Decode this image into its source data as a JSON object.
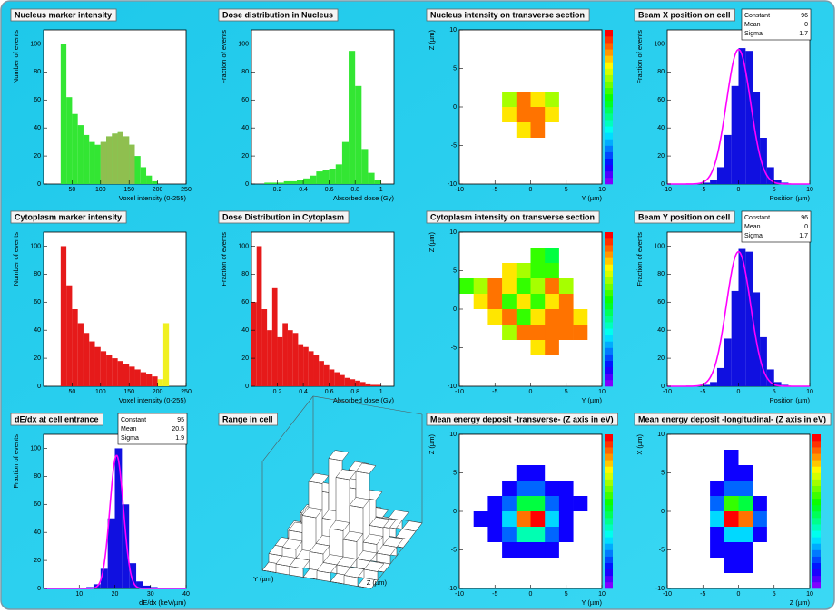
{
  "chart_data": [
    {
      "type": "histogram",
      "title": "Nucleus marker intensity",
      "xlabel": "Voxel intensity (0-255)",
      "ylabel": "Number of events",
      "bins": [
        30,
        40,
        50,
        60,
        70,
        80,
        90,
        100,
        110,
        120,
        130,
        140,
        150,
        160,
        170,
        180,
        190,
        200
      ],
      "series": [
        {
          "color": "#33e633",
          "values": [
            100,
            62,
            50,
            42,
            35,
            30,
            28,
            30,
            34,
            36,
            37,
            34,
            28,
            20,
            12,
            6,
            2
          ]
        },
        {
          "color": "#8fbf4f",
          "values": [
            null,
            null,
            null,
            null,
            null,
            null,
            null,
            30,
            34,
            36,
            37,
            34,
            28,
            null,
            null,
            null,
            null
          ]
        }
      ],
      "xlim": [
        0,
        250
      ],
      "ylim": [
        0,
        110
      ],
      "xticks": [
        50,
        100,
        150,
        200,
        250
      ],
      "yticks": [
        0,
        20,
        40,
        60,
        80,
        100
      ]
    },
    {
      "type": "histogram",
      "title": "Dose distribution in Nucleus",
      "xlabel": "Absorbed dose (Gy)",
      "ylabel": "Fraction of events",
      "bins": [
        0.1,
        0.15,
        0.2,
        0.25,
        0.3,
        0.35,
        0.4,
        0.45,
        0.5,
        0.55,
        0.6,
        0.65,
        0.7,
        0.75,
        0.8,
        0.85,
        0.9,
        0.95,
        1
      ],
      "series": [
        {
          "color": "#33e633",
          "values": [
            1,
            1,
            1,
            2,
            2,
            3,
            4,
            6,
            9,
            10,
            11,
            14,
            30,
            95,
            70,
            25,
            8,
            3
          ]
        }
      ],
      "xlim": [
        0,
        1.1
      ],
      "ylim": [
        0,
        110
      ],
      "xticks": [
        0.2,
        0.4,
        0.6,
        0.8,
        1
      ],
      "yticks": [
        0,
        20,
        40,
        60,
        80,
        100
      ]
    },
    {
      "type": "heatmap",
      "title": "Nucleus intensity on transverse section",
      "xlabel": "Y (µm)",
      "ylabel": "Z (µm)",
      "z": [
        [
          0,
          0,
          0,
          0,
          0,
          0,
          0,
          0,
          0,
          0
        ],
        [
          0,
          0,
          0,
          0,
          0,
          0,
          0,
          0,
          0,
          0
        ],
        [
          0,
          0,
          0,
          0,
          0,
          0,
          0,
          0,
          0,
          0
        ],
        [
          0,
          0,
          0,
          0,
          0,
          0,
          0,
          0,
          0,
          0
        ],
        [
          0,
          0,
          0,
          7,
          9,
          8,
          7,
          0,
          0,
          0
        ],
        [
          0,
          0,
          0,
          8,
          9,
          9,
          8,
          0,
          0,
          0
        ],
        [
          0,
          0,
          0,
          0,
          8,
          9,
          0,
          0,
          0,
          0
        ],
        [
          0,
          0,
          0,
          0,
          0,
          0,
          0,
          0,
          0,
          0
        ],
        [
          0,
          0,
          0,
          0,
          0,
          0,
          0,
          0,
          0,
          0
        ],
        [
          0,
          0,
          0,
          0,
          0,
          0,
          0,
          0,
          0,
          0
        ]
      ],
      "xlim": [
        -10,
        10
      ],
      "ylim": [
        -10,
        10
      ],
      "zlim": [
        0,
        10
      ],
      "xticks": [
        -10,
        -5,
        0,
        5,
        10
      ],
      "yticks": [
        -10,
        -5,
        0,
        5,
        10
      ]
    },
    {
      "type": "histogram",
      "title": "Beam X position on cell",
      "xlabel": "Position (µm)",
      "ylabel": "Fraction of events",
      "bins": [
        -10,
        -9,
        -8,
        -7,
        -6,
        -5,
        -4,
        -3,
        -2,
        -1,
        0,
        1,
        2,
        3,
        4,
        5,
        6,
        7,
        8,
        9,
        10
      ],
      "series": [
        {
          "color": "#1010e0",
          "values": [
            0,
            0,
            0,
            0,
            0,
            1,
            3,
            12,
            35,
            70,
            97,
            95,
            66,
            33,
            12,
            3,
            1,
            0,
            0,
            0
          ]
        }
      ],
      "stats": [
        {
          "label": "Constant",
          "value": 96
        },
        {
          "label": "Mean",
          "value": 0
        },
        {
          "label": "Sigma",
          "value": 1.7
        }
      ],
      "xlim": [
        -10,
        10
      ],
      "ylim": [
        0,
        110
      ],
      "xticks": [
        -10,
        -5,
        0,
        5,
        10
      ],
      "yticks": [
        0,
        20,
        40,
        60,
        80,
        100
      ]
    },
    {
      "type": "histogram",
      "title": "Cytoplasm marker intensity",
      "xlabel": "Voxel intensity (0-255)",
      "ylabel": "Number of events",
      "bins": [
        30,
        40,
        50,
        60,
        70,
        80,
        90,
        100,
        110,
        120,
        130,
        140,
        150,
        160,
        170,
        180,
        190,
        200,
        210,
        220
      ],
      "series": [
        {
          "color": "#e61a1a",
          "values": [
            100,
            72,
            55,
            45,
            38,
            32,
            28,
            25,
            22,
            20,
            18,
            16,
            14,
            12,
            10,
            9,
            7,
            null,
            null
          ]
        },
        {
          "color": "#f0f020",
          "values": [
            null,
            null,
            null,
            null,
            null,
            null,
            null,
            null,
            null,
            null,
            null,
            null,
            null,
            null,
            null,
            null,
            null,
            5,
            45
          ]
        }
      ],
      "xlim": [
        0,
        250
      ],
      "ylim": [
        0,
        110
      ],
      "xticks": [
        50,
        100,
        150,
        200,
        250
      ],
      "yticks": [
        0,
        20,
        40,
        60,
        80,
        100
      ]
    },
    {
      "type": "histogram",
      "title": "Dose Distribution in Cytoplasm",
      "xlabel": "Absorbed dose (Gy)",
      "ylabel": "Fraction of events",
      "bins": [
        0,
        0.04,
        0.08,
        0.12,
        0.16,
        0.2,
        0.24,
        0.28,
        0.32,
        0.36,
        0.4,
        0.44,
        0.48,
        0.52,
        0.56,
        0.6,
        0.64,
        0.68,
        0.72,
        0.76,
        0.8,
        0.84,
        0.88,
        0.92,
        0.96,
        1
      ],
      "series": [
        {
          "color": "#e61a1a",
          "values": [
            60,
            100,
            55,
            40,
            70,
            35,
            45,
            40,
            38,
            30,
            28,
            25,
            22,
            18,
            15,
            12,
            10,
            8,
            6,
            5,
            4,
            3,
            2,
            1,
            1
          ]
        }
      ],
      "xlim": [
        0,
        1.1
      ],
      "ylim": [
        0,
        110
      ],
      "xticks": [
        0.2,
        0.4,
        0.6,
        0.8,
        1
      ],
      "yticks": [
        0,
        20,
        40,
        60,
        80,
        100
      ]
    },
    {
      "type": "heatmap",
      "title": "Cytoplasm intensity on transverse section",
      "xlabel": "Y (µm)",
      "ylabel": "Z (µm)",
      "z": [
        [
          0,
          0,
          0,
          0,
          0,
          0,
          0,
          0,
          0,
          0
        ],
        [
          0,
          0,
          0,
          0,
          0,
          6,
          5,
          0,
          0,
          0
        ],
        [
          0,
          0,
          0,
          8,
          7,
          6,
          6,
          0,
          0,
          0
        ],
        [
          6,
          7,
          9,
          8,
          6,
          7,
          9,
          7,
          0,
          0
        ],
        [
          0,
          8,
          9,
          6,
          8,
          6,
          8,
          9,
          0,
          0
        ],
        [
          0,
          0,
          8,
          9,
          6,
          8,
          9,
          9,
          8,
          0
        ],
        [
          0,
          0,
          0,
          7,
          9,
          9,
          9,
          9,
          9,
          0
        ],
        [
          0,
          0,
          0,
          0,
          0,
          8,
          9,
          0,
          0,
          0
        ],
        [
          0,
          0,
          0,
          0,
          0,
          0,
          0,
          0,
          0,
          0
        ],
        [
          0,
          0,
          0,
          0,
          0,
          0,
          0,
          0,
          0,
          0
        ]
      ],
      "xlim": [
        -10,
        10
      ],
      "ylim": [
        -10,
        10
      ],
      "zlim": [
        0,
        10
      ],
      "xticks": [
        -10,
        -5,
        0,
        5,
        10
      ],
      "yticks": [
        -10,
        -5,
        0,
        5,
        10
      ]
    },
    {
      "type": "histogram",
      "title": "Beam Y position on cell",
      "xlabel": "Position (µm)",
      "ylabel": "Fraction of events",
      "bins": [
        -10,
        -9,
        -8,
        -7,
        -6,
        -5,
        -4,
        -3,
        -2,
        -1,
        0,
        1,
        2,
        3,
        4,
        5,
        6,
        7,
        8,
        9,
        10
      ],
      "series": [
        {
          "color": "#1010e0",
          "values": [
            0,
            0,
            0,
            0,
            0,
            1,
            3,
            13,
            34,
            68,
            98,
            96,
            67,
            35,
            12,
            3,
            1,
            0,
            0,
            0
          ]
        }
      ],
      "stats": [
        {
          "label": "Constant",
          "value": 96
        },
        {
          "label": "Mean",
          "value": 0
        },
        {
          "label": "Sigma",
          "value": 1.7
        }
      ],
      "xlim": [
        -10,
        10
      ],
      "ylim": [
        0,
        110
      ],
      "xticks": [
        -10,
        -5,
        0,
        5,
        10
      ],
      "yticks": [
        0,
        20,
        40,
        60,
        80,
        100
      ]
    },
    {
      "type": "histogram",
      "title": "dE/dx at cell entrance",
      "xlabel": "dE/dx (keV/µm)",
      "ylabel": "Fraction of events",
      "bins": [
        0,
        2,
        4,
        6,
        8,
        10,
        12,
        14,
        16,
        18,
        20,
        22,
        24,
        26,
        28,
        30,
        32,
        34,
        36,
        38,
        40
      ],
      "series": [
        {
          "color": "#1010e0",
          "values": [
            0,
            0,
            0,
            0,
            0,
            0,
            1,
            3,
            14,
            50,
            100,
            60,
            18,
            5,
            2,
            1,
            0,
            0,
            0,
            0
          ]
        }
      ],
      "stats": [
        {
          "label": "Constant",
          "value": 95
        },
        {
          "label": "Mean",
          "value": 20.5
        },
        {
          "label": "Sigma",
          "value": 1.9
        }
      ],
      "xlim": [
        0,
        40
      ],
      "ylim": [
        0,
        110
      ],
      "xticks": [
        10,
        20,
        30,
        40
      ],
      "yticks": [
        0,
        20,
        40,
        60,
        80,
        100
      ]
    },
    {
      "type": "lego",
      "title": "Range in cell",
      "xlabel": "Z (µm)",
      "ylabel": "Y (µm)",
      "z": [
        [
          0,
          1,
          1,
          0,
          1,
          0,
          1,
          0
        ],
        [
          1,
          2,
          1,
          2,
          1,
          1,
          0,
          1
        ],
        [
          1,
          3,
          5,
          2,
          4,
          3,
          1,
          0
        ],
        [
          0,
          2,
          8,
          4,
          9,
          6,
          2,
          1
        ],
        [
          1,
          3,
          6,
          10,
          7,
          9,
          3,
          1
        ],
        [
          0,
          2,
          4,
          6,
          8,
          5,
          2,
          0
        ],
        [
          1,
          1,
          2,
          3,
          2,
          2,
          1,
          0
        ],
        [
          0,
          1,
          0,
          1,
          1,
          0,
          1,
          0
        ]
      ],
      "zlim": [
        0,
        10
      ],
      "color": "#ffffff"
    },
    {
      "type": "heatmap",
      "title": "Mean energy deposit -transverse- (Z axis in eV)",
      "xlabel": "Y (µm)",
      "ylabel": "Z (µm)",
      "z": [
        [
          0,
          0,
          0,
          0,
          0,
          0,
          0,
          0,
          0,
          0
        ],
        [
          0,
          0,
          0,
          0,
          0,
          0,
          0,
          0,
          0,
          0
        ],
        [
          0,
          0,
          0,
          0,
          1,
          1,
          0,
          0,
          0,
          0
        ],
        [
          0,
          0,
          0,
          1,
          2,
          2,
          1,
          1,
          0,
          0
        ],
        [
          0,
          0,
          1,
          2,
          5,
          5,
          2,
          1,
          1,
          0
        ],
        [
          0,
          1,
          1,
          3,
          9,
          10,
          3,
          1,
          0,
          0
        ],
        [
          0,
          0,
          1,
          2,
          4,
          4,
          2,
          1,
          0,
          0
        ],
        [
          0,
          0,
          0,
          1,
          1,
          1,
          1,
          0,
          0,
          0
        ],
        [
          0,
          0,
          0,
          0,
          0,
          0,
          0,
          0,
          0,
          0
        ],
        [
          0,
          0,
          0,
          0,
          0,
          0,
          0,
          0,
          0,
          0
        ]
      ],
      "xlim": [
        -10,
        10
      ],
      "ylim": [
        -10,
        10
      ],
      "zlim": [
        0,
        10
      ],
      "xticks": [
        -10,
        -5,
        0,
        5,
        10
      ],
      "yticks": [
        -10,
        -5,
        0,
        5,
        10
      ]
    },
    {
      "type": "heatmap",
      "title": "Mean energy deposit -longitudinal- (Z axis in eV)",
      "xlabel": "Z (µm)",
      "ylabel": "X (µm)",
      "z": [
        [
          0,
          0,
          0,
          0,
          0,
          0,
          0,
          0,
          0,
          0
        ],
        [
          0,
          0,
          0,
          0,
          1,
          0,
          0,
          0,
          0,
          0
        ],
        [
          0,
          0,
          0,
          0,
          1,
          1,
          0,
          0,
          0,
          0
        ],
        [
          0,
          0,
          0,
          1,
          2,
          2,
          0,
          0,
          0,
          0
        ],
        [
          0,
          0,
          0,
          2,
          6,
          5,
          1,
          0,
          0,
          0
        ],
        [
          0,
          0,
          0,
          3,
          10,
          9,
          2,
          0,
          0,
          0
        ],
        [
          0,
          0,
          0,
          1,
          3,
          3,
          1,
          0,
          0,
          0
        ],
        [
          0,
          0,
          0,
          1,
          1,
          1,
          0,
          0,
          0,
          0
        ],
        [
          0,
          0,
          0,
          0,
          1,
          1,
          0,
          0,
          0,
          0
        ],
        [
          0,
          0,
          0,
          0,
          0,
          0,
          0,
          0,
          0,
          0
        ]
      ],
      "xlim": [
        -10,
        10
      ],
      "ylim": [
        -10,
        10
      ],
      "zlim": [
        0,
        10
      ],
      "xticks": [
        -10,
        -5,
        0,
        5,
        10
      ],
      "yticks": [
        -10,
        -5,
        0,
        5,
        10
      ]
    }
  ]
}
